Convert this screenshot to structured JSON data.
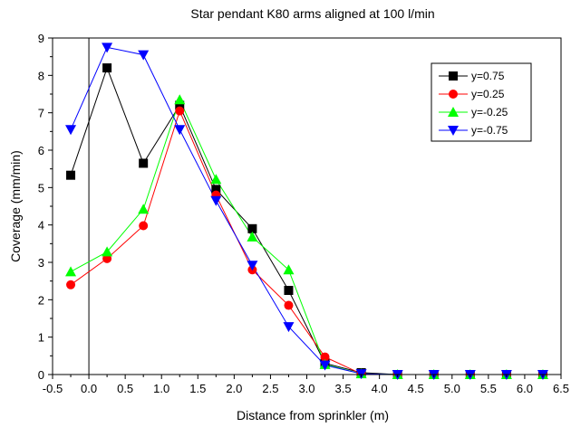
{
  "chart_data": {
    "type": "line",
    "title": "Star pendant K80 arms aligned at 100 l/min",
    "xlabel": "Distance from sprinkler (m)",
    "ylabel": "Coverage (mm/min)",
    "xlim": [
      -0.5,
      6.5
    ],
    "ylim": [
      0,
      9
    ],
    "xticks": [
      "-0.5",
      "0.0",
      "0.5",
      "1.0",
      "1.5",
      "2.0",
      "2.5",
      "3.0",
      "3.5",
      "4.0",
      "4.5",
      "5.0",
      "5.5",
      "6.0",
      "6.5"
    ],
    "yticks": [
      "0",
      "1",
      "2",
      "3",
      "4",
      "5",
      "6",
      "7",
      "8",
      "9"
    ],
    "grid": false,
    "legend_position": "top-right",
    "x": [
      -0.25,
      0.25,
      0.75,
      1.25,
      1.75,
      2.25,
      2.75,
      3.25,
      3.75,
      4.25,
      4.75,
      5.25,
      5.75,
      6.25
    ],
    "series": [
      {
        "name": "y=0.75",
        "color": "#000000",
        "marker": "square",
        "values": [
          5.33,
          8.2,
          5.65,
          7.2,
          4.95,
          3.9,
          2.25,
          0.3,
          0.05,
          0,
          0,
          0,
          0,
          0
        ]
      },
      {
        "name": "y=0.25",
        "color": "#ff0000",
        "marker": "circle",
        "values": [
          2.4,
          3.1,
          3.98,
          7.05,
          4.8,
          2.8,
          1.85,
          0.47,
          0.02,
          0,
          0,
          0,
          0,
          0
        ]
      },
      {
        "name": "y=-0.25",
        "color": "#00ff00",
        "marker": "triangle-up",
        "values": [
          2.75,
          3.28,
          4.42,
          7.35,
          5.22,
          3.68,
          2.8,
          0.27,
          0.02,
          0,
          0,
          0,
          0,
          0
        ]
      },
      {
        "name": "y=-0.75",
        "color": "#0000ff",
        "marker": "triangle-down",
        "values": [
          6.55,
          8.75,
          8.55,
          6.55,
          4.65,
          2.92,
          1.28,
          0.25,
          0.02,
          0,
          0,
          0,
          0,
          0
        ]
      }
    ],
    "vertical_reference_line_x": 0
  }
}
